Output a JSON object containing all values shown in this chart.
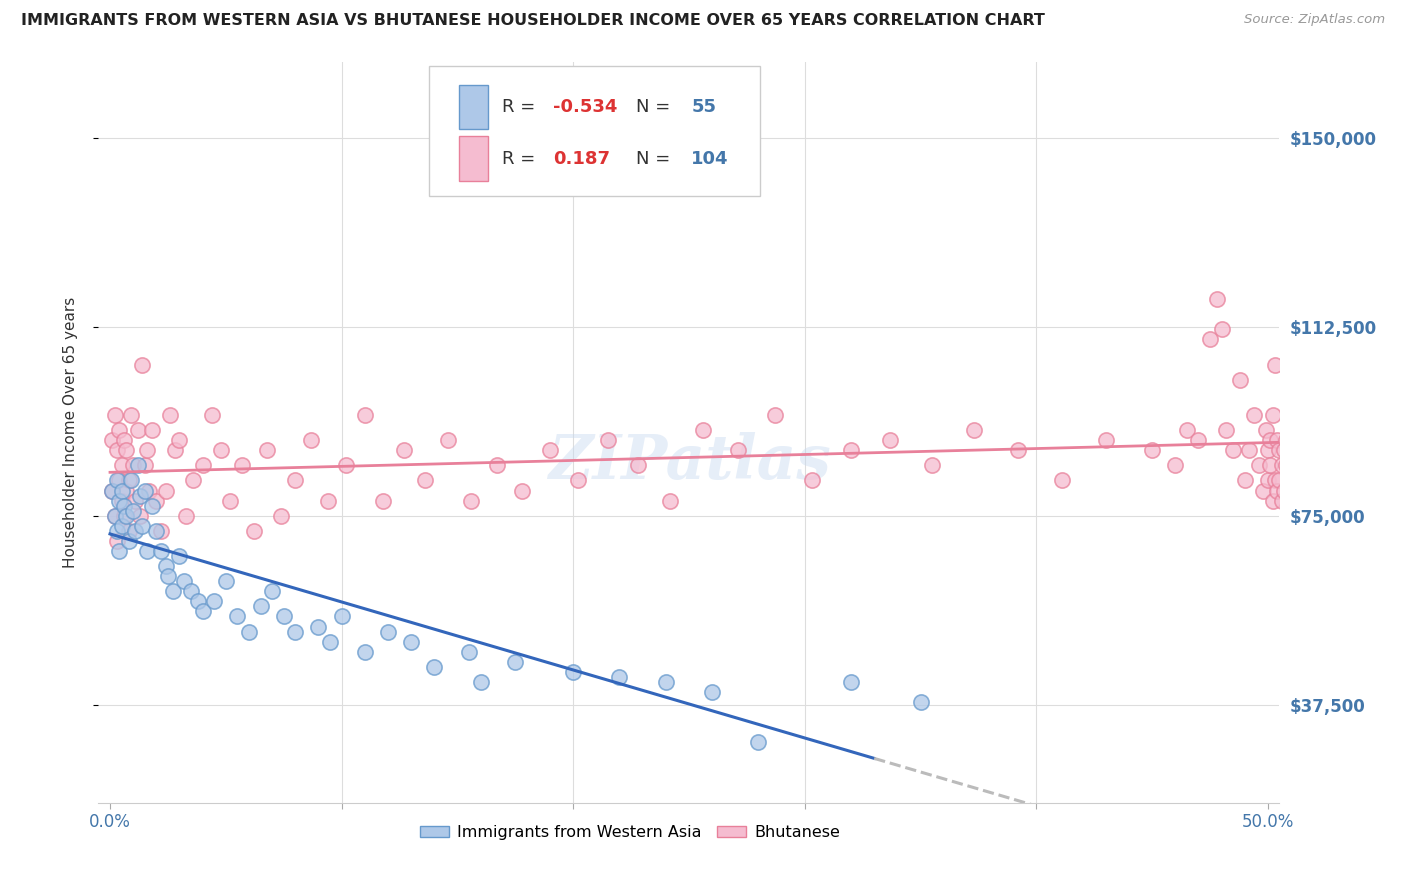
{
  "title": "IMMIGRANTS FROM WESTERN ASIA VS BHUTANESE HOUSEHOLDER INCOME OVER 65 YEARS CORRELATION CHART",
  "source": "Source: ZipAtlas.com",
  "ylabel": "Householder Income Over 65 years",
  "ytick_labels": [
    "$37,500",
    "$75,000",
    "$112,500",
    "$150,000"
  ],
  "ytick_values": [
    37500,
    75000,
    112500,
    150000
  ],
  "ylim": [
    18000,
    165000
  ],
  "xlim": [
    -0.005,
    0.505
  ],
  "color_blue_fill": "#aec8e8",
  "color_blue_edge": "#6699cc",
  "color_blue_line": "#3366bb",
  "color_pink_fill": "#f5bcd0",
  "color_pink_edge": "#e8809a",
  "color_pink_line": "#e8809a",
  "color_dash": "#bbbbbb",
  "watermark": "ZIPatlas",
  "legend_r1_val": "-0.534",
  "legend_n1_val": "55",
  "legend_r2_val": "0.187",
  "legend_n2_val": "104",
  "blue_x": [
    0.001,
    0.002,
    0.003,
    0.003,
    0.004,
    0.004,
    0.005,
    0.005,
    0.006,
    0.007,
    0.008,
    0.009,
    0.01,
    0.011,
    0.012,
    0.013,
    0.014,
    0.015,
    0.016,
    0.018,
    0.02,
    0.022,
    0.024,
    0.025,
    0.027,
    0.03,
    0.032,
    0.035,
    0.038,
    0.04,
    0.045,
    0.05,
    0.055,
    0.06,
    0.065,
    0.07,
    0.075,
    0.08,
    0.09,
    0.095,
    0.1,
    0.11,
    0.12,
    0.13,
    0.14,
    0.155,
    0.16,
    0.175,
    0.2,
    0.22,
    0.24,
    0.26,
    0.28,
    0.32,
    0.35
  ],
  "blue_y": [
    80000,
    75000,
    72000,
    82000,
    78000,
    68000,
    80000,
    73000,
    77000,
    75000,
    70000,
    82000,
    76000,
    72000,
    85000,
    79000,
    73000,
    80000,
    68000,
    77000,
    72000,
    68000,
    65000,
    63000,
    60000,
    67000,
    62000,
    60000,
    58000,
    56000,
    58000,
    62000,
    55000,
    52000,
    57000,
    60000,
    55000,
    52000,
    53000,
    50000,
    55000,
    48000,
    52000,
    50000,
    45000,
    48000,
    42000,
    46000,
    44000,
    43000,
    42000,
    40000,
    30000,
    42000,
    38000
  ],
  "pink_x": [
    0.001,
    0.001,
    0.002,
    0.002,
    0.003,
    0.003,
    0.004,
    0.004,
    0.005,
    0.005,
    0.006,
    0.006,
    0.007,
    0.007,
    0.008,
    0.008,
    0.009,
    0.01,
    0.011,
    0.012,
    0.013,
    0.014,
    0.015,
    0.016,
    0.017,
    0.018,
    0.02,
    0.022,
    0.024,
    0.026,
    0.028,
    0.03,
    0.033,
    0.036,
    0.04,
    0.044,
    0.048,
    0.052,
    0.057,
    0.062,
    0.068,
    0.074,
    0.08,
    0.087,
    0.094,
    0.102,
    0.11,
    0.118,
    0.127,
    0.136,
    0.146,
    0.156,
    0.167,
    0.178,
    0.19,
    0.202,
    0.215,
    0.228,
    0.242,
    0.256,
    0.271,
    0.287,
    0.303,
    0.32,
    0.337,
    0.355,
    0.373,
    0.392,
    0.411,
    0.43,
    0.45,
    0.46,
    0.465,
    0.47,
    0.475,
    0.478,
    0.48,
    0.482,
    0.485,
    0.488,
    0.49,
    0.492,
    0.494,
    0.496,
    0.498,
    0.499,
    0.5,
    0.5,
    0.501,
    0.501,
    0.502,
    0.502,
    0.503,
    0.503,
    0.504,
    0.504,
    0.505,
    0.505,
    0.506,
    0.506,
    0.507,
    0.507,
    0.508,
    0.508
  ],
  "pink_y": [
    80000,
    90000,
    75000,
    95000,
    70000,
    88000,
    82000,
    92000,
    78000,
    85000,
    90000,
    75000,
    80000,
    88000,
    82000,
    72000,
    95000,
    85000,
    78000,
    92000,
    75000,
    105000,
    85000,
    88000,
    80000,
    92000,
    78000,
    72000,
    80000,
    95000,
    88000,
    90000,
    75000,
    82000,
    85000,
    95000,
    88000,
    78000,
    85000,
    72000,
    88000,
    75000,
    82000,
    90000,
    78000,
    85000,
    95000,
    78000,
    88000,
    82000,
    90000,
    78000,
    85000,
    80000,
    88000,
    82000,
    90000,
    85000,
    78000,
    92000,
    88000,
    95000,
    82000,
    88000,
    90000,
    85000,
    92000,
    88000,
    82000,
    90000,
    88000,
    85000,
    92000,
    90000,
    110000,
    118000,
    112000,
    92000,
    88000,
    102000,
    82000,
    88000,
    95000,
    85000,
    80000,
    92000,
    88000,
    82000,
    85000,
    90000,
    78000,
    95000,
    105000,
    82000,
    80000,
    90000,
    88000,
    82000,
    78000,
    85000,
    88000,
    80000,
    85000,
    90000
  ]
}
